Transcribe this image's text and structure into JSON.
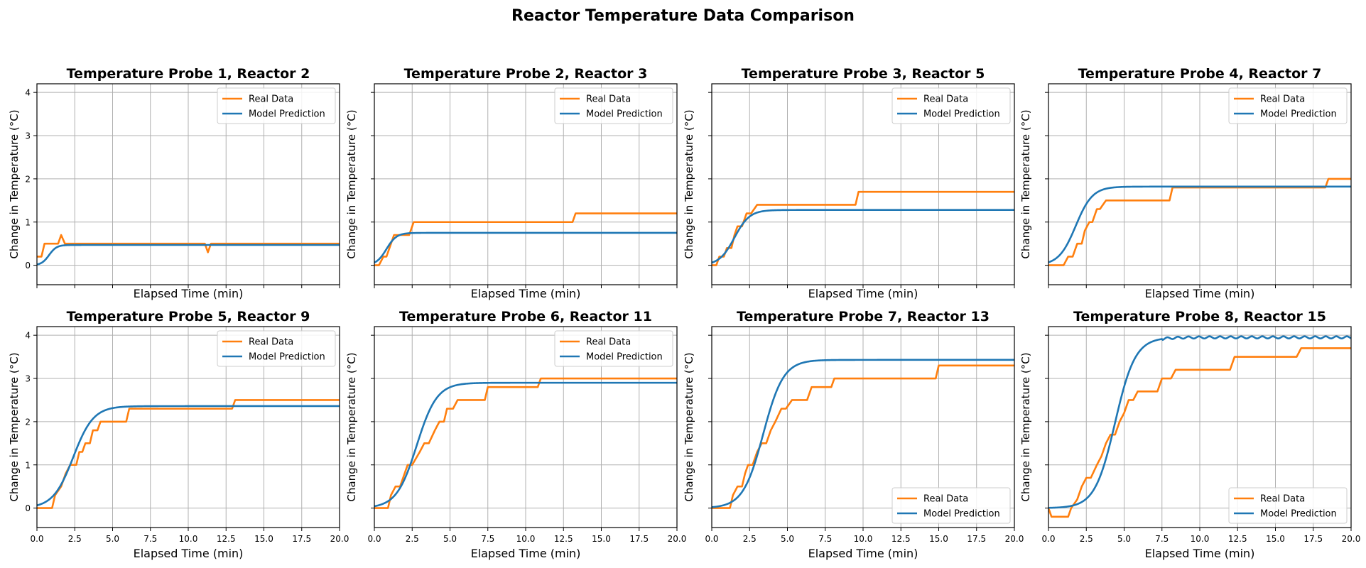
{
  "figure": {
    "title": "Reactor Temperature Data Comparison"
  },
  "colors": {
    "real": "#ff7f0e",
    "model": "#1f77b4",
    "grid": "#b0b0b0"
  },
  "chart_data": [
    {
      "type": "line",
      "title": "Temperature Probe 1, Reactor 2",
      "xlabel": "Elapsed Time (min)",
      "ylabel": "Change in Temperature (°C)",
      "xlim": [
        0,
        20
      ],
      "ylim": [
        -0.45,
        4.2
      ],
      "legend": "upper right",
      "grid": true,
      "series": [
        {
          "name": "Real Data",
          "x": [
            0,
            0.3,
            0.5,
            0.9,
            1.4,
            1.6,
            1.85,
            2.0,
            11.1,
            11.3,
            11.5,
            20
          ],
          "y": [
            0.2,
            0.2,
            0.5,
            0.5,
            0.5,
            0.7,
            0.5,
            0.5,
            0.5,
            0.3,
            0.5,
            0.5
          ]
        },
        {
          "name": "Model Prediction",
          "model": true,
          "amp": 0.47,
          "t0": 0.8,
          "k": 4.0
        }
      ]
    },
    {
      "type": "line",
      "title": "Temperature Probe 2, Reactor 3",
      "xlabel": "Elapsed Time (min)",
      "ylabel": "Change in Temperature (°C)",
      "xlim": [
        0,
        20
      ],
      "ylim": [
        -0.45,
        4.2
      ],
      "legend": "upper right",
      "grid": true,
      "series": [
        {
          "name": "Real Data",
          "x": [
            0,
            0.3,
            0.6,
            0.8,
            1.1,
            1.3,
            1.6,
            2.0,
            2.3,
            2.5,
            2.6,
            13.1,
            13.3,
            20
          ],
          "y": [
            0,
            0,
            0.2,
            0.2,
            0.5,
            0.7,
            0.7,
            0.7,
            0.7,
            0.9,
            1.0,
            1.0,
            1.2,
            1.2
          ]
        },
        {
          "name": "Model Prediction",
          "model": true,
          "amp": 0.75,
          "t0": 0.8,
          "k": 3.0
        }
      ]
    },
    {
      "type": "line",
      "title": "Temperature Probe 3, Reactor 5",
      "xlabel": "Elapsed Time (min)",
      "ylabel": "Change in Temperature (°C)",
      "xlim": [
        0,
        20
      ],
      "ylim": [
        -0.45,
        4.2
      ],
      "legend": "upper right",
      "grid": true,
      "series": [
        {
          "name": "Real Data",
          "x": [
            0,
            0.3,
            0.5,
            0.8,
            1.0,
            1.3,
            1.5,
            1.7,
            2.0,
            2.3,
            2.6,
            2.8,
            3.0,
            9.5,
            9.7,
            20
          ],
          "y": [
            0,
            0,
            0.2,
            0.2,
            0.4,
            0.4,
            0.7,
            0.9,
            0.9,
            1.2,
            1.2,
            1.3,
            1.4,
            1.4,
            1.7,
            1.7
          ]
        },
        {
          "name": "Model Prediction",
          "model": true,
          "amp": 1.28,
          "t0": 1.5,
          "k": 2.0
        }
      ]
    },
    {
      "type": "line",
      "title": "Temperature Probe 4, Reactor 7",
      "xlabel": "Elapsed Time (min)",
      "ylabel": "Change in Temperature (°C)",
      "xlim": [
        0,
        20
      ],
      "ylim": [
        -0.45,
        4.2
      ],
      "legend": "upper right",
      "grid": true,
      "series": [
        {
          "name": "Real Data",
          "x": [
            0,
            1.0,
            1.3,
            1.6,
            1.9,
            2.2,
            2.4,
            2.7,
            2.9,
            3.2,
            3.4,
            3.6,
            3.8,
            8.0,
            8.2,
            18.3,
            18.5,
            20
          ],
          "y": [
            0,
            0,
            0.2,
            0.2,
            0.5,
            0.5,
            0.8,
            1.0,
            1.0,
            1.3,
            1.3,
            1.4,
            1.5,
            1.5,
            1.8,
            1.8,
            2.0,
            2.0
          ]
        },
        {
          "name": "Model Prediction",
          "model": true,
          "amp": 1.82,
          "t0": 1.8,
          "k": 1.8
        }
      ]
    },
    {
      "type": "line",
      "title": "Temperature Probe 5, Reactor 9",
      "xlabel": "Elapsed Time (min)",
      "ylabel": "Change in Temperature (°C)",
      "xlim": [
        0,
        20
      ],
      "ylim": [
        -0.45,
        4.2
      ],
      "legend": "upper right",
      "grid": true,
      "series": [
        {
          "name": "Real Data",
          "x": [
            0,
            1.0,
            1.2,
            1.6,
            1.9,
            2.2,
            2.6,
            2.8,
            3.0,
            3.2,
            3.5,
            3.7,
            4.0,
            4.2,
            4.6,
            5.9,
            6.1,
            12.9,
            13.1,
            20
          ],
          "y": [
            0,
            0,
            0.3,
            0.5,
            0.8,
            1.0,
            1.0,
            1.3,
            1.3,
            1.5,
            1.5,
            1.8,
            1.8,
            2.0,
            2.0,
            2.0,
            2.3,
            2.3,
            2.5,
            2.5
          ]
        },
        {
          "name": "Model Prediction",
          "model": true,
          "amp": 2.36,
          "t0": 2.4,
          "k": 1.5
        }
      ]
    },
    {
      "type": "line",
      "title": "Temperature Probe 6, Reactor 11",
      "xlabel": "Elapsed Time (min)",
      "ylabel": "Change in Temperature (°C)",
      "xlim": [
        0,
        20
      ],
      "ylim": [
        -0.45,
        4.2
      ],
      "legend": "upper right",
      "grid": true,
      "series": [
        {
          "name": "Real Data",
          "x": [
            0,
            0.9,
            1.1,
            1.4,
            1.7,
            2.0,
            2.2,
            2.5,
            3.0,
            3.3,
            3.6,
            4.0,
            4.3,
            4.6,
            4.8,
            5.2,
            5.5,
            7.3,
            7.5,
            10.8,
            11.0,
            20
          ],
          "y": [
            0,
            0,
            0.3,
            0.5,
            0.5,
            0.8,
            1.0,
            1.0,
            1.3,
            1.5,
            1.5,
            1.8,
            2.0,
            2.0,
            2.3,
            2.3,
            2.5,
            2.5,
            2.8,
            2.8,
            3.0,
            3.0
          ]
        },
        {
          "name": "Model Prediction",
          "model": true,
          "amp": 2.9,
          "t0": 2.8,
          "k": 1.5
        }
      ]
    },
    {
      "type": "line",
      "title": "Temperature Probe 7, Reactor 13",
      "xlabel": "Elapsed Time (min)",
      "ylabel": "Change in Temperature (°C)",
      "xlim": [
        0,
        20
      ],
      "ylim": [
        -0.45,
        4.2
      ],
      "legend": "lower right",
      "grid": true,
      "series": [
        {
          "name": "Real Data",
          "x": [
            0,
            1.2,
            1.4,
            1.7,
            2.0,
            2.2,
            2.4,
            2.7,
            3.0,
            3.3,
            3.6,
            3.9,
            4.2,
            4.6,
            4.9,
            5.3,
            5.6,
            6.3,
            6.6,
            7.6,
            7.9,
            8.1,
            14.8,
            15.0,
            20
          ],
          "y": [
            0,
            0,
            0.3,
            0.5,
            0.5,
            0.8,
            1.0,
            1.0,
            1.3,
            1.5,
            1.5,
            1.8,
            2.0,
            2.3,
            2.3,
            2.5,
            2.5,
            2.5,
            2.8,
            2.8,
            2.8,
            3.0,
            3.0,
            3.3,
            3.3
          ]
        },
        {
          "name": "Model Prediction",
          "model": true,
          "amp": 3.43,
          "t0": 3.4,
          "k": 1.5
        }
      ]
    },
    {
      "type": "line",
      "title": "Temperature Probe 8, Reactor 15",
      "xlabel": "Elapsed Time (min)",
      "ylabel": "Change in Temperature (°C)",
      "xlim": [
        0,
        20
      ],
      "ylim": [
        -0.45,
        4.2
      ],
      "legend": "lower right",
      "grid": true,
      "series": [
        {
          "name": "Real Data",
          "x": [
            0,
            0.2,
            1.3,
            1.5,
            1.9,
            2.2,
            2.5,
            2.8,
            3.2,
            3.5,
            3.8,
            4.1,
            4.4,
            4.7,
            5.0,
            5.3,
            5.6,
            5.9,
            6.2,
            7.2,
            7.5,
            8.1,
            8.4,
            12.0,
            12.3,
            16.4,
            16.7,
            20
          ],
          "y": [
            0,
            -0.2,
            -0.2,
            0,
            0.2,
            0.5,
            0.7,
            0.7,
            1.0,
            1.2,
            1.5,
            1.7,
            1.7,
            2.0,
            2.2,
            2.5,
            2.5,
            2.7,
            2.7,
            2.7,
            3.0,
            3.0,
            3.2,
            3.2,
            3.5,
            3.5,
            3.7,
            3.7
          ]
        },
        {
          "name": "Model Prediction",
          "model": true,
          "amp": 3.95,
          "t0": 4.4,
          "k": 1.5,
          "ripple": true
        }
      ]
    }
  ]
}
